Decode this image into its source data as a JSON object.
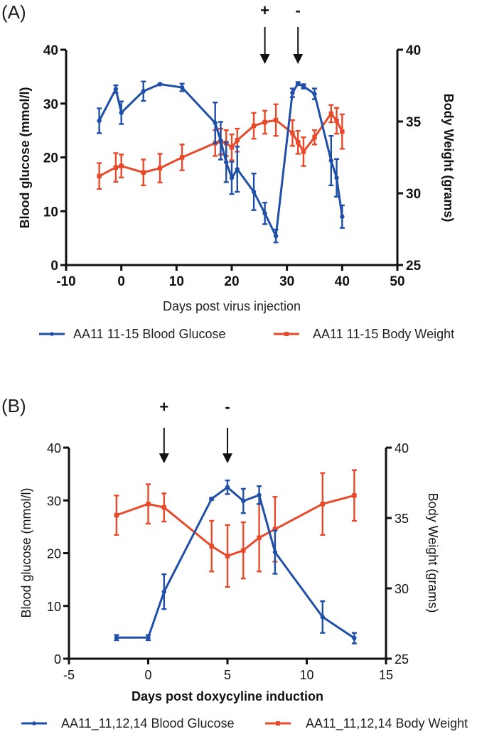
{
  "colors": {
    "glucose": "#1f4fa8",
    "weight": "#e8492a",
    "axis": "#111111"
  },
  "chart_data": [
    {
      "panel": "(A)",
      "type": "line",
      "xlabel": "Days post virus injection",
      "ylabel_left": "Blood glucose (mmol/l)",
      "ylabel_right": "Body Weight (grams)",
      "xlim": [
        -10,
        50
      ],
      "xticks": [
        -10,
        0,
        10,
        20,
        30,
        40,
        50
      ],
      "ylim_left": [
        0,
        40
      ],
      "yticks_left": [
        0,
        10,
        20,
        30,
        40
      ],
      "ylim_right": [
        25,
        40
      ],
      "yticks_right": [
        25,
        30,
        35,
        40
      ],
      "annotations": [
        {
          "x": 26,
          "label": "+"
        },
        {
          "x": 32,
          "label": "-"
        }
      ],
      "series": [
        {
          "name": "AA11 11-15 Blood Glucose",
          "axis": "left",
          "color_key": "glucose",
          "x": [
            -4,
            -1,
            0,
            4,
            7,
            11,
            17,
            18,
            19,
            20,
            21,
            24,
            26,
            28,
            31,
            32,
            33,
            35,
            38,
            39,
            40
          ],
          "y": [
            26.8,
            32.7,
            28.3,
            32.3,
            33.6,
            33.0,
            26.4,
            23.1,
            19.1,
            16.2,
            17.8,
            13.6,
            9.6,
            5.4,
            32.0,
            33.7,
            33.2,
            31.8,
            19.4,
            16.2,
            9.0
          ],
          "err": [
            2.3,
            0.7,
            2.1,
            1.8,
            0.1,
            0.7,
            3.8,
            3.5,
            3.7,
            3.0,
            4.2,
            3.4,
            2.0,
            1.2,
            0.8,
            0.3,
            0.4,
            1.0,
            4.6,
            3.5,
            2.1
          ]
        },
        {
          "name": "AA11 11-15 Body Weight",
          "axis": "right",
          "color_key": "weight",
          "x": [
            -4,
            -1,
            0,
            4,
            7,
            11,
            17,
            18,
            19,
            20,
            21,
            24,
            26,
            28,
            31,
            32,
            33,
            35,
            38,
            39,
            40
          ],
          "y": [
            31.2,
            31.8,
            31.9,
            31.45,
            31.75,
            32.5,
            33.5,
            33.6,
            33.5,
            33.2,
            33.7,
            34.7,
            34.95,
            35.1,
            34.2,
            33.55,
            32.9,
            33.9,
            35.55,
            35.05,
            34.3
          ],
          "err": [
            0.9,
            1.0,
            0.8,
            0.9,
            1.0,
            0.9,
            0.9,
            0.9,
            0.9,
            0.9,
            0.8,
            0.9,
            0.8,
            1.1,
            0.9,
            0.8,
            1.0,
            0.5,
            0.6,
            0.9,
            1.2
          ]
        }
      ],
      "legend": {
        "placement": "bottom"
      }
    },
    {
      "panel": "(B)",
      "type": "line",
      "xlabel": "Days post doxycyline induction",
      "ylabel_left": "Blood glucose (mmol/l)",
      "ylabel_right": "Body Weight (grams)",
      "xlim": [
        -5,
        15
      ],
      "xticks": [
        -5,
        0,
        5,
        10,
        15
      ],
      "ylim_left": [
        0,
        40
      ],
      "yticks_left": [
        0,
        10,
        20,
        30,
        40
      ],
      "ylim_right": [
        25,
        40
      ],
      "yticks_right": [
        25,
        30,
        35,
        40
      ],
      "annotations": [
        {
          "x": 1,
          "label": "+"
        },
        {
          "x": 5,
          "label": "-"
        }
      ],
      "series": [
        {
          "name": "AA11_11,12,14 Blood Glucose",
          "axis": "left",
          "color_key": "glucose",
          "x": [
            -2,
            0,
            1,
            4,
            5,
            6,
            7,
            8,
            11,
            13
          ],
          "y": [
            4.0,
            4.0,
            12.7,
            30.3,
            32.5,
            29.9,
            31.0,
            20.2,
            7.9,
            3.9
          ],
          "err": [
            0.5,
            0.5,
            3.3,
            0.2,
            1.3,
            2.3,
            1.7,
            4.1,
            3.0,
            1.0
          ]
        },
        {
          "name": "AA11_11,12,14 Body Weight",
          "axis": "right",
          "color_key": "weight",
          "x": [
            -2,
            0,
            1,
            4,
            5,
            6,
            7,
            8,
            11,
            13
          ],
          "y": [
            35.2,
            36.0,
            35.75,
            33.0,
            32.3,
            32.7,
            33.6,
            34.2,
            36.0,
            36.6
          ],
          "err": [
            1.4,
            1.4,
            1.0,
            1.8,
            2.2,
            2.0,
            2.4,
            2.3,
            2.2,
            1.8
          ]
        }
      ],
      "legend": {
        "placement": "bottom"
      }
    }
  ]
}
